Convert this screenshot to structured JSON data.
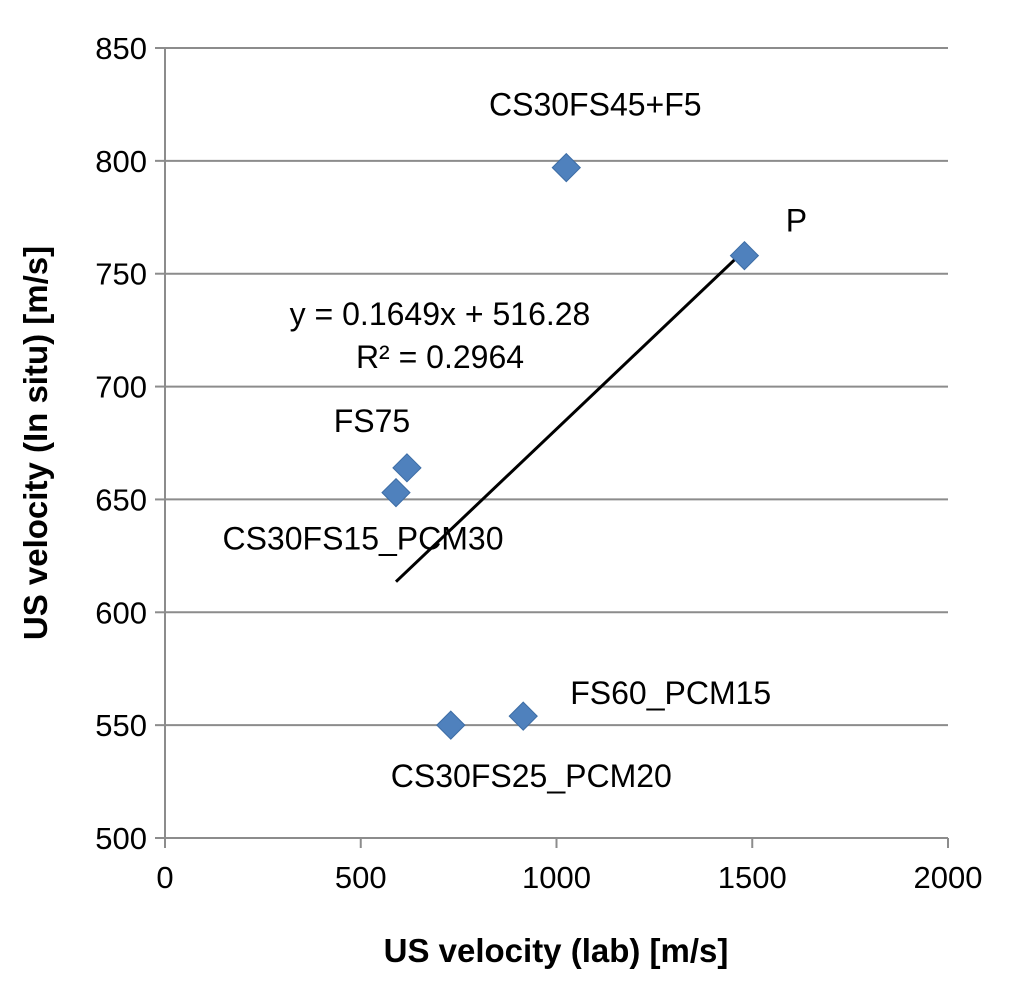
{
  "chart_data": {
    "type": "scatter",
    "xlabel": "US velocity (lab) [m/s]",
    "ylabel": "US velocity (In situ) [m/s]",
    "xlim": [
      0,
      2000
    ],
    "ylim": [
      500,
      850
    ],
    "x_ticks": [
      0,
      500,
      1000,
      1500,
      2000
    ],
    "y_ticks": [
      500,
      550,
      600,
      650,
      700,
      750,
      800,
      850
    ],
    "grid": "horizontal",
    "series": [
      {
        "marker": "diamond",
        "color": "#4F81BD",
        "points": [
          {
            "label": "CS30FS45+F5",
            "x": 1025,
            "y": 797
          },
          {
            "label": "P",
            "x": 1480,
            "y": 758
          },
          {
            "label": "FS75",
            "x": 618,
            "y": 664
          },
          {
            "label": "CS30FS15_PCM30",
            "x": 590,
            "y": 653
          },
          {
            "label": "FS60_PCM15",
            "x": 915,
            "y": 554
          },
          {
            "label": "CS30FS25_PCM20",
            "x": 730,
            "y": 550
          }
        ]
      }
    ],
    "trendline": {
      "type": "linear",
      "slope": 0.1649,
      "intercept": 516.28,
      "x_range": [
        590,
        1480
      ],
      "equation_text": "y = 0.1649x + 516.28",
      "r2_text": "R² = 0.2964"
    }
  }
}
